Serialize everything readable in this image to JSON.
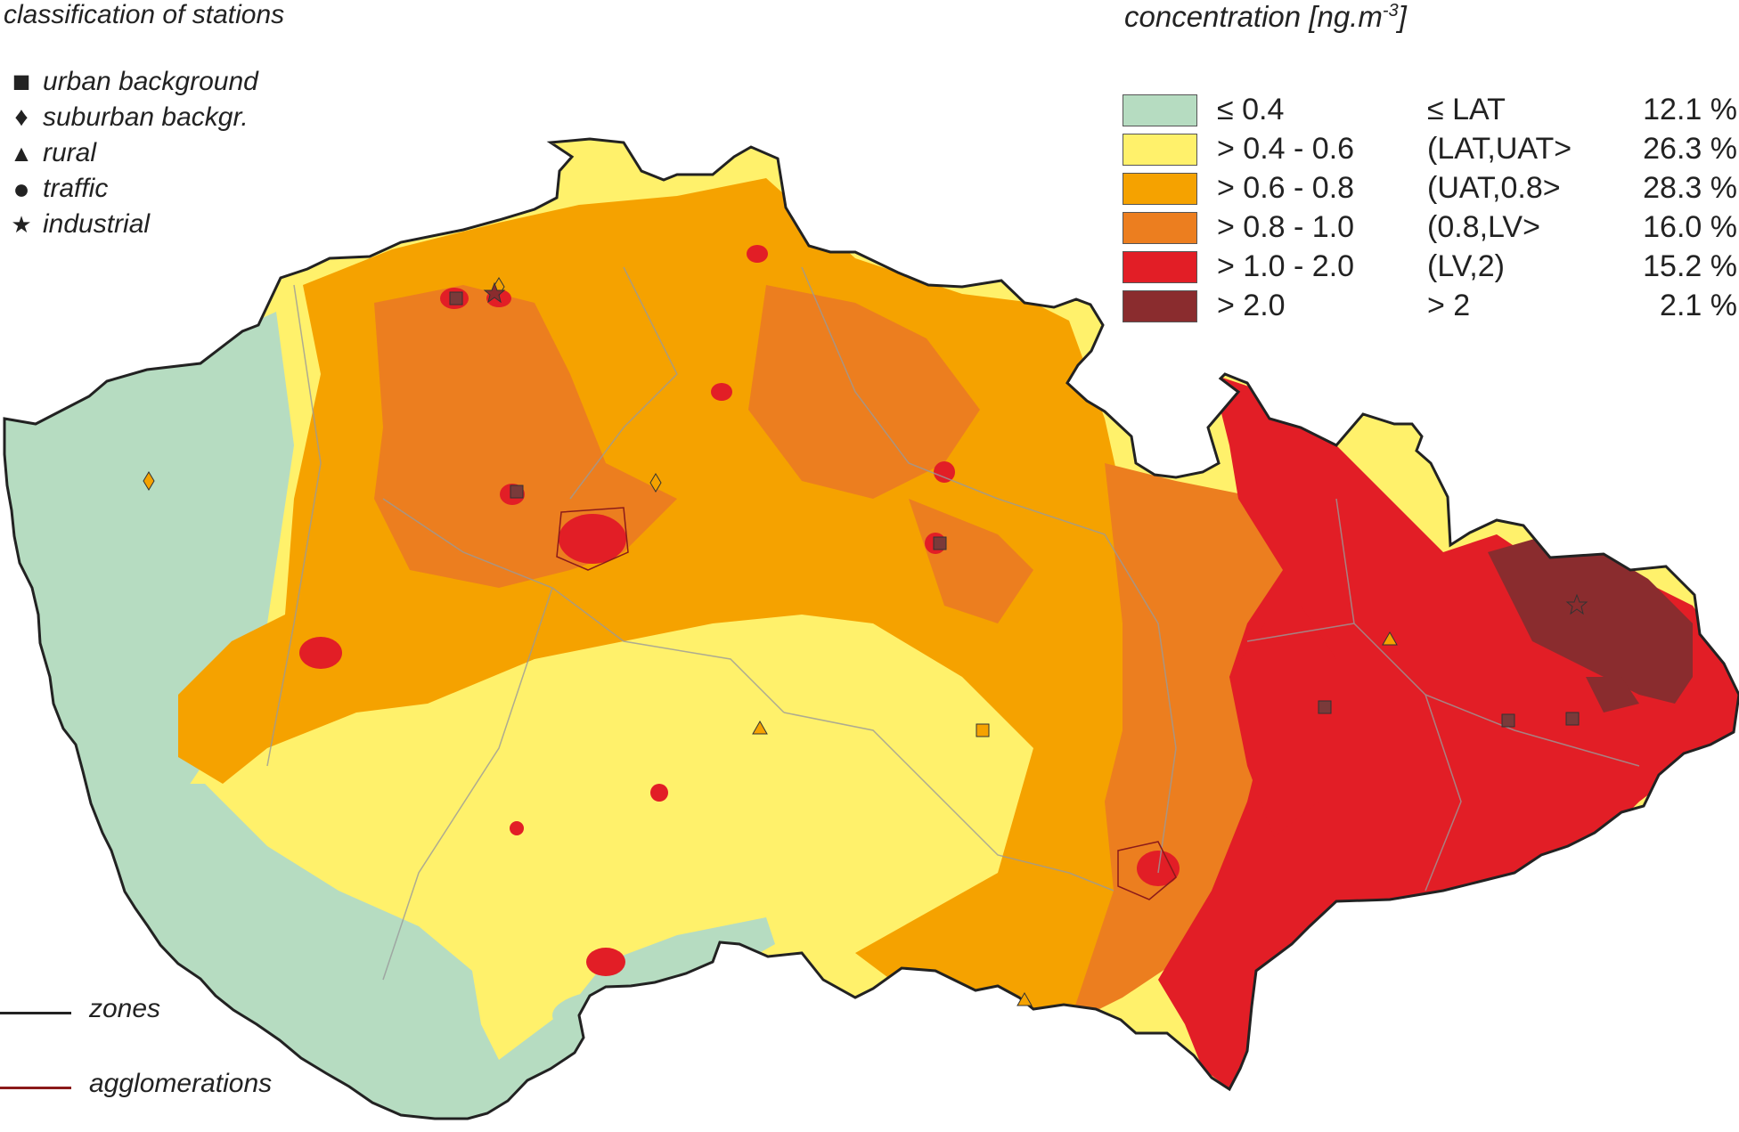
{
  "stations": {
    "title": "classification of stations",
    "items": [
      {
        "symbol": "■",
        "label": "urban background"
      },
      {
        "symbol": "♦",
        "label": "suburban backgr."
      },
      {
        "symbol": "▲",
        "label": "rural"
      },
      {
        "symbol": "●",
        "label": "traffic"
      },
      {
        "symbol": "★",
        "label": "industrial"
      }
    ]
  },
  "concentration": {
    "title": "concentration [ng.m",
    "title_sup": "-3",
    "title_end": "]",
    "classes": [
      {
        "range": "≤ 0.4",
        "class": "≤ LAT",
        "percent": "12.1 %",
        "color": "#b6dcc1"
      },
      {
        "range": "> 0.4 - 0.6",
        "class": "(LAT,UAT>",
        "percent": "26.3 %",
        "color": "#fff16b"
      },
      {
        "range": "> 0.6 - 0.8",
        "class": "(UAT,0.8>",
        "percent": "28.3 %",
        "color": "#f5a200"
      },
      {
        "range": "> 0.8 - 1.0",
        "class": "(0.8,LV>",
        "percent": "16.0 %",
        "color": "#ec7e1f"
      },
      {
        "range": "> 1.0 - 2.0",
        "class": "(LV,2)",
        "percent": "15.2 %",
        "color": "#e21e26"
      },
      {
        "range": "> 2.0",
        "class": "> 2",
        "percent": "2.1 %",
        "color": "#8a2c2e"
      }
    ]
  },
  "line_legend": [
    {
      "label": "zones",
      "color": "#222222"
    },
    {
      "label": "agglomerations",
      "color": "#8b1a1a"
    }
  ]
}
